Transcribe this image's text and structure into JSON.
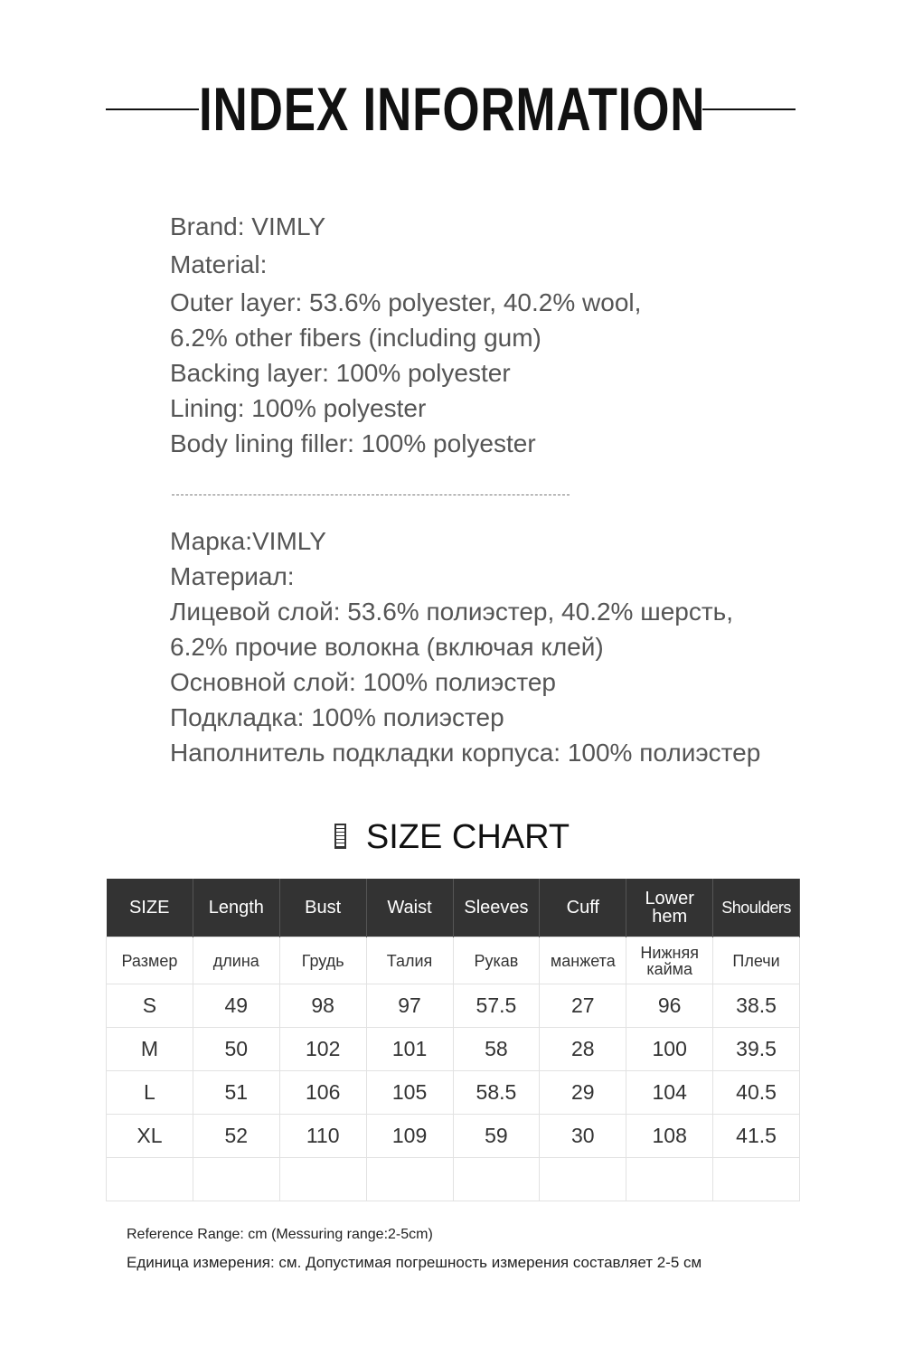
{
  "header": {
    "title": "INDEX INFORMATION"
  },
  "english": {
    "brand": "Brand:  VIMLY",
    "material_label": "Material:",
    "lines": [
      "Outer layer: 53.6% polyester, 40.2% wool,",
      "6.2% other fibers (including gum)",
      "Backing layer: 100% polyester",
      "Lining: 100% polyester",
      "Body lining filler: 100% polyester"
    ]
  },
  "russian": {
    "brand": "Марка:VIMLY",
    "material_label": "Материал:",
    "lines": [
      "Лицевой слой: 53.6% полиэстер, 40.2% шерсть,",
      "6.2% прочие волокна (включая клей)",
      "Основной слой: 100% полиэстер",
      "Подкладка: 100% полиэстер",
      "Наполнитель подкладки корпуса: 100% полиэстер"
    ]
  },
  "size_chart": {
    "icon": "ruler-icon",
    "title": "SIZE CHART",
    "headers": [
      "SIZE",
      "Length",
      "Bust",
      "Waist",
      "Sleeves",
      "Cuff",
      "Lower hem",
      "Shoulders"
    ],
    "headers_ru": [
      "Размер",
      "длина",
      "Грудь",
      "Талия",
      "Рукав",
      "манжета",
      "Нижняя кайма",
      "Плечи"
    ],
    "rows": [
      [
        "S",
        "49",
        "98",
        "97",
        "57.5",
        "27",
        "96",
        "38.5"
      ],
      [
        "M",
        "50",
        "102",
        "101",
        "58",
        "28",
        "100",
        "39.5"
      ],
      [
        "L",
        "51",
        "106",
        "105",
        "58.5",
        "29",
        "104",
        "40.5"
      ],
      [
        "XL",
        "52",
        "110",
        "109",
        "59",
        "30",
        "108",
        "41.5"
      ]
    ],
    "header_bg": "#333333"
  },
  "notes": {
    "en": "Reference Range: cm (Messuring range:2-5cm)",
    "ru": "Единица измерения: см. Допустимая погрешность измерения составляет 2-5 см"
  }
}
